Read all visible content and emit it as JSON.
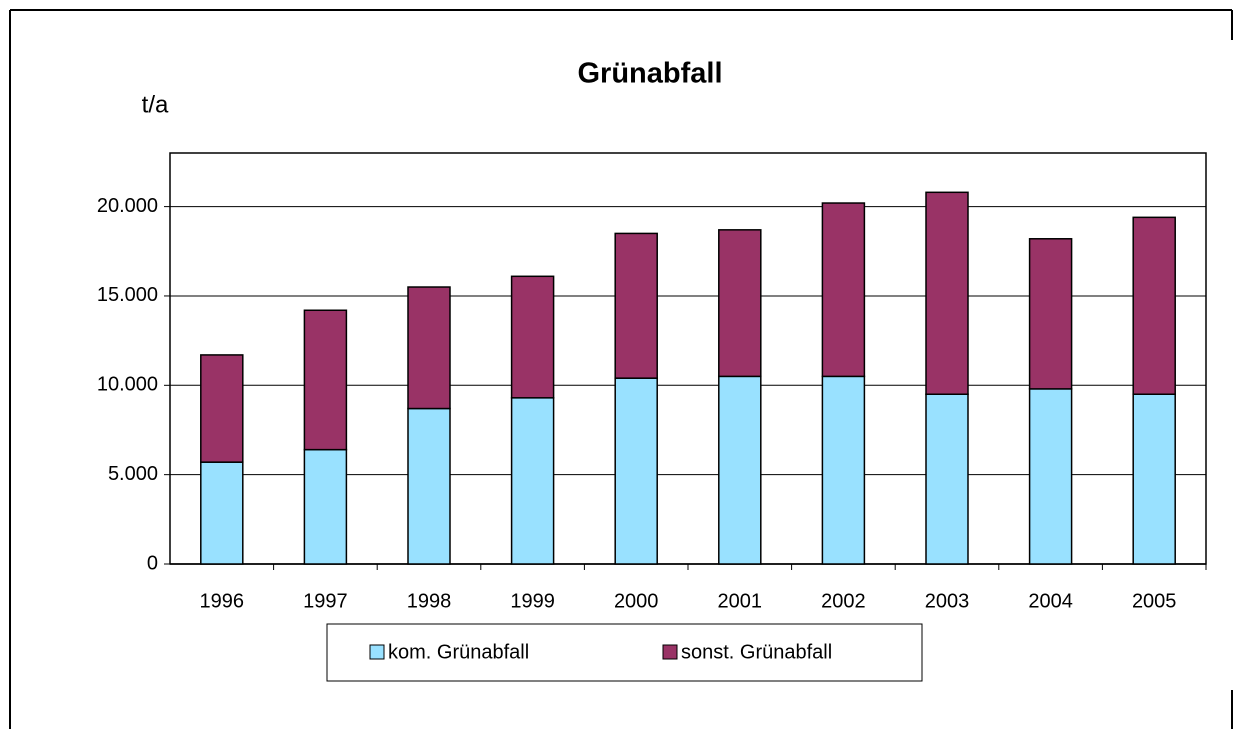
{
  "chart_data": {
    "type": "stacked_bar",
    "title": "Grünabfall",
    "y_label": "t/a",
    "categories": [
      "1996",
      "1997",
      "1998",
      "1999",
      "2000",
      "2001",
      "2002",
      "2003",
      "2004",
      "2005"
    ],
    "series": [
      {
        "name": "kom. Grünabfall",
        "color": "#99e1ff",
        "values": [
          5700,
          6400,
          8700,
          9300,
          10400,
          10500,
          10500,
          9500,
          9800,
          9500
        ]
      },
      {
        "name": "sonst. Grünabfall",
        "color": "#993366",
        "values": [
          6000,
          7800,
          6800,
          6800,
          8100,
          8200,
          9700,
          11300,
          8400,
          9900
        ]
      }
    ],
    "ylim": [
      0,
      23000
    ],
    "yticks": [
      0,
      {
        "value": 5000,
        "label": "5.000"
      },
      {
        "value": 10000,
        "label": "10.000"
      },
      {
        "value": 15000,
        "label": "15.000"
      },
      {
        "value": 20000,
        "label": "20.000"
      }
    ],
    "grid": true,
    "legend": "bottom"
  }
}
